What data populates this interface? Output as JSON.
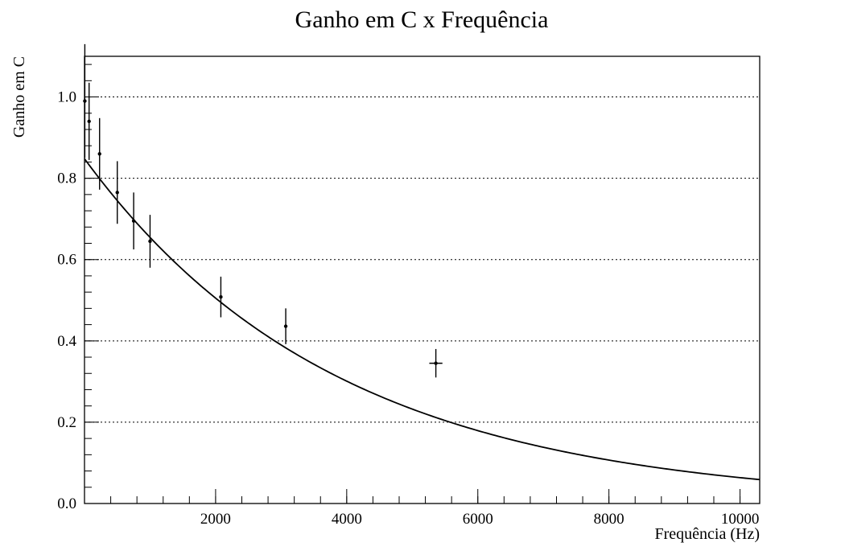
{
  "chart_data": {
    "type": "scatter",
    "title": "Ganho em C x Frequência",
    "xlabel": "Frequência (Hz)",
    "ylabel": "Ganho em C",
    "xlim": [
      0,
      10300
    ],
    "ylim": [
      0,
      1.1
    ],
    "x_ticks": [
      2000,
      4000,
      6000,
      8000,
      10000
    ],
    "y_ticks": [
      "0.0",
      "0.2",
      "0.4",
      "0.6",
      "0.8",
      "1.0"
    ],
    "grid": "horizontal dotted",
    "legend": "none",
    "series": [
      {
        "points": [
          {
            "x": 5,
            "y": 0.99,
            "yerr": 0.14,
            "xerr": 0
          },
          {
            "x": 70,
            "y": 0.94,
            "yerr": 0.095,
            "xerr": 0
          },
          {
            "x": 230,
            "y": 0.86,
            "yerr": 0.088,
            "xerr": 0
          },
          {
            "x": 500,
            "y": 0.765,
            "yerr": 0.077,
            "xerr": 0
          },
          {
            "x": 750,
            "y": 0.695,
            "yerr": 0.07,
            "xerr": 0
          },
          {
            "x": 1000,
            "y": 0.645,
            "yerr": 0.065,
            "xerr": 0
          },
          {
            "x": 2080,
            "y": 0.508,
            "yerr": 0.05,
            "xerr": 0
          },
          {
            "x": 3070,
            "y": 0.436,
            "yerr": 0.044,
            "xerr": 0
          },
          {
            "x": 5360,
            "y": 0.345,
            "yerr": 0.035,
            "xerr": 100
          }
        ]
      }
    ],
    "fit_curve": {
      "type": "exponential",
      "a": 0.848,
      "b": 0.000259
    }
  }
}
